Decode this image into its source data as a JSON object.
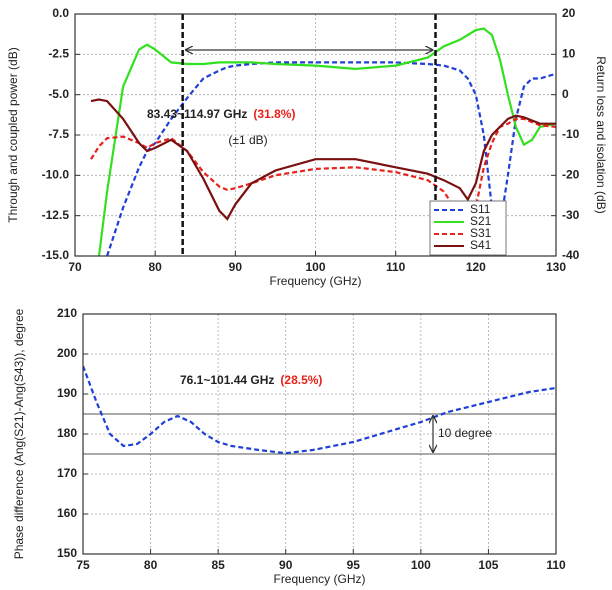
{
  "chart_data": [
    {
      "type": "line",
      "xlabel": "Frequency (GHz)",
      "ylabel": "Through and coupled power (dB)",
      "y2label": "Return loss and isolation (dB)",
      "xlim": [
        70,
        130
      ],
      "xticks": [
        70,
        80,
        90,
        100,
        110,
        120,
        130
      ],
      "ylim": [
        -15,
        0
      ],
      "yticks": [
        {
          "value": 0,
          "label": "0.0"
        },
        -2.5,
        {
          "value": -5,
          "label": "-5.0"
        },
        -7.5,
        {
          "value": -10,
          "label": "-10.0"
        },
        -12.5,
        {
          "value": -15,
          "label": "-15.0"
        }
      ],
      "y2lim": [
        -40,
        20
      ],
      "y2ticks": [
        20,
        10,
        0,
        -10,
        -20,
        -30,
        -40
      ],
      "grid": true,
      "legend": "lower right",
      "x": [
        72,
        73,
        74,
        76,
        78,
        79,
        80,
        82,
        84,
        86,
        88,
        89,
        90,
        92,
        95,
        100,
        105,
        110,
        114,
        116,
        118,
        119,
        120,
        121,
        122,
        123,
        124,
        125,
        126,
        127,
        128,
        130
      ],
      "series": [
        {
          "name": "S11",
          "color": "#1f3fd6",
          "dash": "dashed",
          "values": [
            null,
            null,
            -15,
            -12,
            -9.5,
            -8.5,
            -8,
            -6.5,
            -5.2,
            -4.0,
            -3.5,
            -3.3,
            -3.2,
            -3.1,
            -3.0,
            -3.0,
            -3.0,
            -3.0,
            -3.1,
            -3.2,
            -3.5,
            -4.0,
            -5.0,
            -7.5,
            -12,
            -13.2,
            -10,
            -6.5,
            -4.5,
            -4.0,
            -4.0,
            -3.7
          ]
        },
        {
          "name": "S21",
          "color": "#33e01f",
          "dash": "solid",
          "values": [
            null,
            -15,
            -11,
            -4.5,
            -2.2,
            -1.9,
            -2.2,
            -3.0,
            -3.1,
            -3.1,
            -3.0,
            -3.0,
            -3.0,
            -3.0,
            -3.1,
            -3.2,
            -3.4,
            -3.2,
            -2.7,
            -2.0,
            -1.6,
            -1.3,
            -1.0,
            -0.9,
            -1.3,
            -2.8,
            -5.0,
            -7.0,
            -8.1,
            -7.8,
            -7.0,
            -6.8
          ]
        },
        {
          "name": "S31",
          "color": "#e8211c",
          "dash": "dashed",
          "values": [
            -9,
            -8.2,
            -7.7,
            -7.6,
            -8.0,
            -8.3,
            -8.0,
            -7.7,
            -8.5,
            -9.8,
            -10.7,
            -10.9,
            -10.8,
            -10.5,
            -10.0,
            -9.6,
            -9.5,
            -9.8,
            -10.3,
            -11.0,
            -12.5,
            -14.0,
            -12.0,
            -9.5,
            -8.0,
            -7.0,
            -6.8,
            -6.5,
            -6.5,
            -6.7,
            -6.9,
            -7.0
          ]
        },
        {
          "name": "S41",
          "color": "#7a1010",
          "dash": "solid",
          "values": [
            -5.4,
            -5.3,
            -5.4,
            -6.5,
            -8.0,
            -8.5,
            -8.3,
            -7.8,
            -8.5,
            -10.2,
            -12.2,
            -12.7,
            -11.8,
            -10.5,
            -9.7,
            -9.0,
            -9.0,
            -9.5,
            -9.9,
            -10.3,
            -10.8,
            -11.5,
            -10.5,
            -8.5,
            -7.5,
            -7.0,
            -6.5,
            -6.3,
            -6.4,
            -6.6,
            -6.8,
            -6.8
          ]
        }
      ],
      "vlines": [
        83.43,
        114.97
      ],
      "annotation": "83.43~114.97 GHz",
      "annotation_highlight": "(31.8%)",
      "annotation_note": "(±1 dB)"
    },
    {
      "type": "line",
      "xlabel": "Frequency (GHz)",
      "ylabel": "Phase difference (Ang(S21)-Ang(S43)), degree",
      "xlim": [
        75,
        110
      ],
      "xticks": [
        75,
        80,
        85,
        90,
        95,
        100,
        105,
        110
      ],
      "ylim": [
        150,
        210
      ],
      "yticks": [
        150,
        160,
        170,
        180,
        190,
        200,
        210
      ],
      "grid": true,
      "x": [
        75,
        76,
        77,
        78,
        79,
        80,
        81,
        82,
        83,
        84,
        85,
        86,
        88,
        90,
        92,
        95,
        98,
        100,
        102,
        105,
        108,
        110
      ],
      "series": [
        {
          "color": "#1f3fd6",
          "dash": "dashed",
          "values": [
            197,
            188,
            180,
            177,
            177.5,
            180,
            183,
            184.5,
            183,
            180,
            178,
            177,
            176,
            175.2,
            176,
            178,
            181,
            183,
            185.5,
            188,
            190.5,
            191.5
          ]
        }
      ],
      "hlines": [
        185,
        175
      ],
      "annotation": "76.1~101.44 GHz",
      "annotation_highlight": "(28.5%)",
      "range_label": "10 degree"
    }
  ]
}
